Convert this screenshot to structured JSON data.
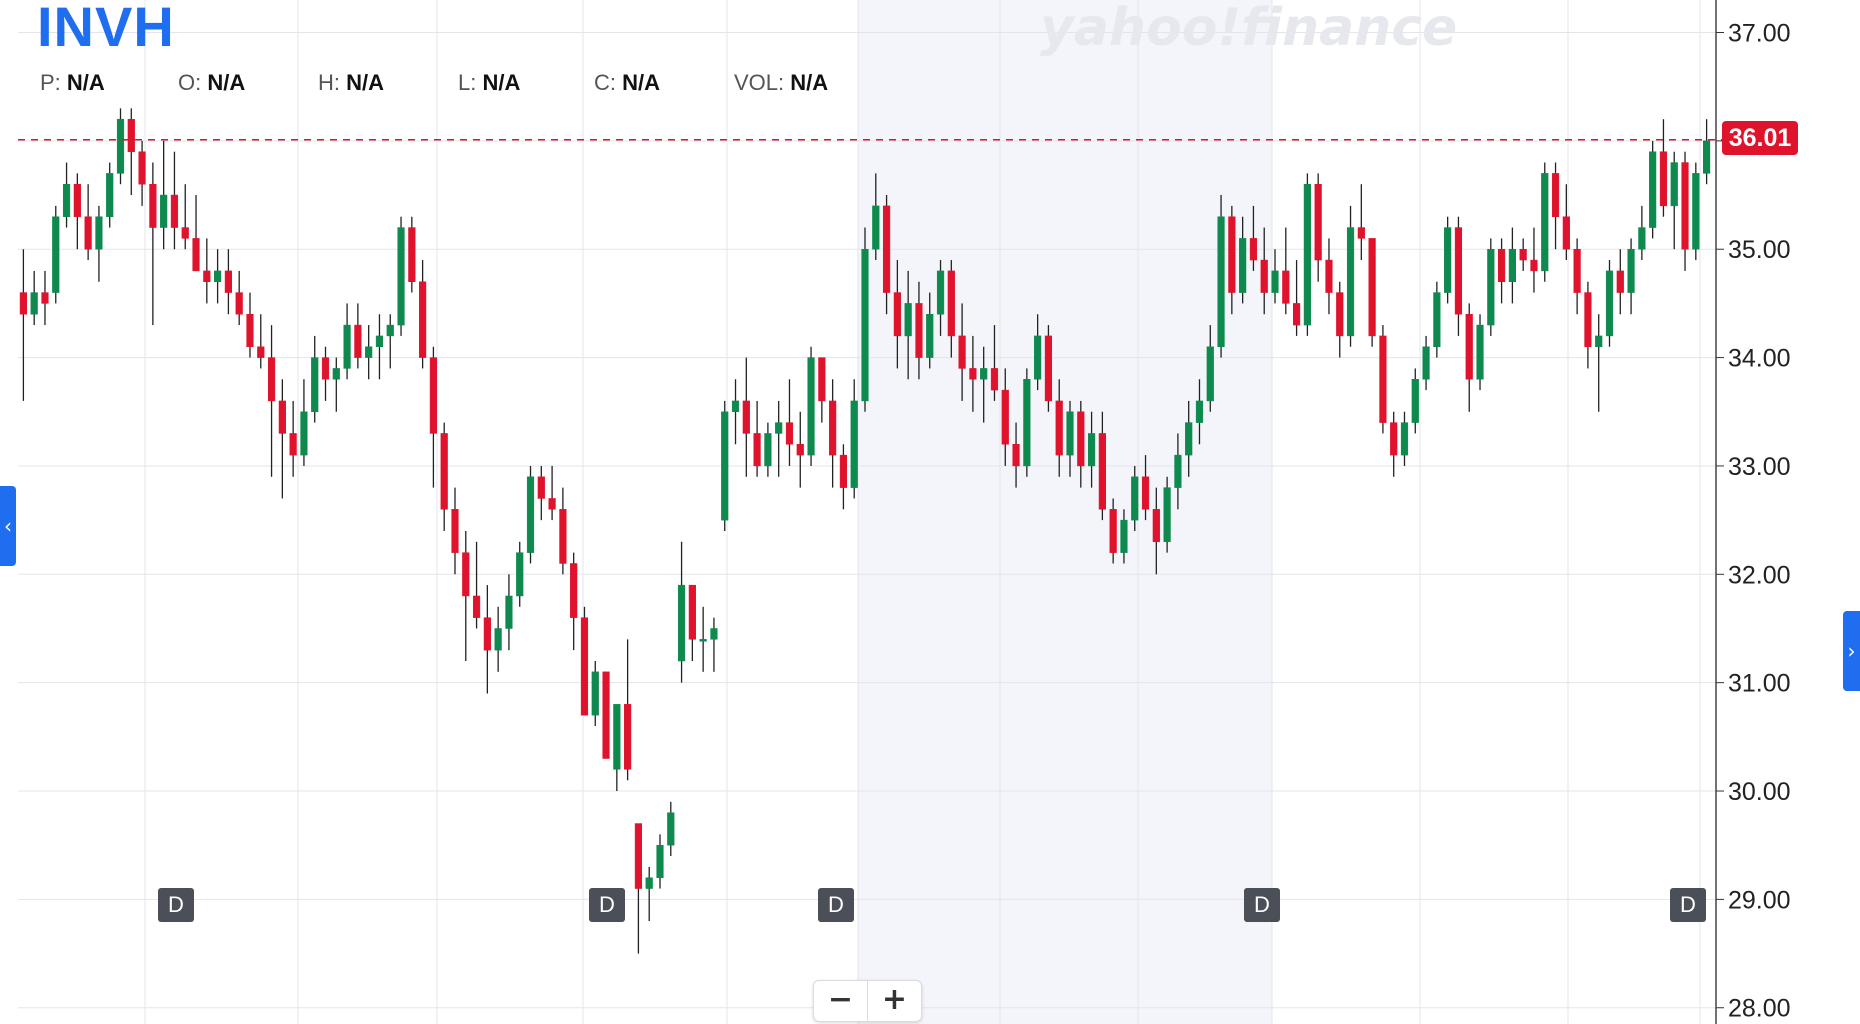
{
  "ticker": "INVH",
  "watermark": "yahoo!finance",
  "ohlc": {
    "p_label": "P:",
    "p_value": "N/A",
    "o_label": "O:",
    "o_value": "N/A",
    "h_label": "H:",
    "h_value": "N/A",
    "l_label": "L:",
    "l_value": "N/A",
    "c_label": "C:",
    "c_value": "N/A",
    "vol_label": "VOL:",
    "vol_value": "N/A"
  },
  "current_price_label": "36.01",
  "dividend_marker_label": "D",
  "zoom": {
    "out_label": "−",
    "in_label": "+"
  },
  "colors": {
    "up": "#0f8a4f",
    "down": "#e0132d",
    "grid": "#e3e5ea",
    "axis_text": "#222222",
    "shade": "#f3f5fa",
    "accent": "#1f6ef0"
  },
  "chart_data": {
    "type": "candlestick",
    "ylim": [
      27.85,
      37.3
    ],
    "yticks": [
      "28.00",
      "29.00",
      "30.00",
      "31.00",
      "32.00",
      "33.00",
      "34.00",
      "35.00",
      "36.00",
      "37.00"
    ],
    "current_price": 36.01,
    "ohlc_tuples": [
      [
        34.6,
        35.0,
        33.6,
        34.4
      ],
      [
        34.4,
        34.8,
        34.3,
        34.6
      ],
      [
        34.6,
        34.8,
        34.3,
        34.5
      ],
      [
        34.6,
        35.4,
        34.5,
        35.3
      ],
      [
        35.3,
        35.8,
        35.2,
        35.6
      ],
      [
        35.6,
        35.7,
        35.0,
        35.3
      ],
      [
        35.3,
        35.6,
        34.9,
        35.0
      ],
      [
        35.0,
        35.4,
        34.7,
        35.3
      ],
      [
        35.3,
        35.8,
        35.2,
        35.7
      ],
      [
        35.7,
        36.3,
        35.6,
        36.2
      ],
      [
        36.2,
        36.3,
        35.5,
        35.9
      ],
      [
        35.9,
        36.0,
        35.4,
        35.6
      ],
      [
        35.6,
        35.8,
        34.3,
        35.2
      ],
      [
        35.2,
        36.0,
        35.0,
        35.5
      ],
      [
        35.5,
        35.9,
        35.0,
        35.2
      ],
      [
        35.2,
        35.6,
        35.0,
        35.1
      ],
      [
        35.1,
        35.5,
        34.8,
        34.8
      ],
      [
        34.8,
        35.1,
        34.5,
        34.7
      ],
      [
        34.7,
        35.0,
        34.5,
        34.8
      ],
      [
        34.8,
        35.0,
        34.4,
        34.6
      ],
      [
        34.6,
        34.8,
        34.3,
        34.4
      ],
      [
        34.4,
        34.6,
        34.0,
        34.1
      ],
      [
        34.1,
        34.4,
        33.9,
        34.0
      ],
      [
        34.0,
        34.3,
        32.9,
        33.6
      ],
      [
        33.6,
        33.8,
        32.7,
        33.3
      ],
      [
        33.3,
        33.6,
        32.9,
        33.1
      ],
      [
        33.1,
        33.8,
        33.0,
        33.5
      ],
      [
        33.5,
        34.2,
        33.4,
        34.0
      ],
      [
        34.0,
        34.1,
        33.6,
        33.8
      ],
      [
        33.8,
        34.0,
        33.5,
        33.9
      ],
      [
        33.9,
        34.5,
        33.8,
        34.3
      ],
      [
        34.3,
        34.5,
        33.9,
        34.0
      ],
      [
        34.0,
        34.3,
        33.8,
        34.1
      ],
      [
        34.1,
        34.4,
        33.8,
        34.2
      ],
      [
        34.2,
        34.4,
        33.9,
        34.3
      ],
      [
        34.3,
        35.3,
        34.2,
        35.2
      ],
      [
        35.2,
        35.3,
        34.6,
        34.7
      ],
      [
        34.7,
        34.9,
        33.9,
        34.0
      ],
      [
        34.0,
        34.1,
        32.8,
        33.3
      ],
      [
        33.3,
        33.4,
        32.4,
        32.6
      ],
      [
        32.6,
        32.8,
        32.0,
        32.2
      ],
      [
        32.2,
        32.4,
        31.2,
        31.8
      ],
      [
        31.8,
        32.3,
        31.5,
        31.6
      ],
      [
        31.6,
        31.9,
        30.9,
        31.3
      ],
      [
        31.3,
        31.7,
        31.1,
        31.5
      ],
      [
        31.5,
        32.0,
        31.3,
        31.8
      ],
      [
        31.8,
        32.3,
        31.7,
        32.2
      ],
      [
        32.2,
        33.0,
        32.1,
        32.9
      ],
      [
        32.9,
        33.0,
        32.5,
        32.7
      ],
      [
        32.7,
        33.0,
        32.5,
        32.6
      ],
      [
        32.6,
        32.8,
        32.0,
        32.1
      ],
      [
        32.1,
        32.2,
        31.3,
        31.6
      ],
      [
        31.6,
        31.7,
        30.8,
        30.7
      ],
      [
        30.7,
        31.2,
        30.6,
        31.1
      ],
      [
        31.1,
        31.1,
        30.3,
        30.3
      ],
      [
        30.2,
        30.8,
        30.0,
        30.8
      ],
      [
        30.8,
        31.4,
        30.1,
        30.2
      ],
      [
        29.7,
        29.7,
        28.5,
        29.1
      ],
      [
        29.1,
        29.3,
        28.8,
        29.2
      ],
      [
        29.2,
        29.6,
        29.1,
        29.5
      ],
      [
        29.5,
        29.9,
        29.4,
        29.8
      ],
      [
        31.2,
        32.3,
        31.0,
        31.9
      ],
      [
        31.9,
        31.9,
        31.2,
        31.4
      ],
      [
        31.4,
        31.7,
        31.1,
        31.4
      ],
      [
        31.4,
        31.6,
        31.1,
        31.5
      ],
      [
        32.5,
        33.6,
        32.4,
        33.5
      ],
      [
        33.5,
        33.8,
        33.2,
        33.6
      ],
      [
        33.6,
        34.0,
        32.9,
        33.3
      ],
      [
        33.3,
        33.6,
        32.9,
        33.0
      ],
      [
        33.0,
        33.4,
        32.9,
        33.3
      ],
      [
        33.3,
        33.6,
        32.9,
        33.4
      ],
      [
        33.4,
        33.8,
        33.0,
        33.2
      ],
      [
        33.2,
        33.5,
        32.8,
        33.1
      ],
      [
        33.1,
        34.1,
        33.0,
        34.0
      ],
      [
        34.0,
        34.0,
        33.4,
        33.6
      ],
      [
        33.6,
        33.8,
        32.8,
        33.1
      ],
      [
        33.1,
        33.2,
        32.6,
        32.8
      ],
      [
        32.8,
        33.8,
        32.7,
        33.6
      ],
      [
        33.6,
        35.2,
        33.5,
        35.0
      ],
      [
        35.0,
        35.7,
        34.9,
        35.4
      ],
      [
        35.4,
        35.5,
        34.4,
        34.6
      ],
      [
        34.6,
        34.9,
        33.9,
        34.2
      ],
      [
        34.2,
        34.8,
        33.8,
        34.5
      ],
      [
        34.5,
        34.7,
        33.8,
        34.0
      ],
      [
        34.0,
        34.6,
        33.9,
        34.4
      ],
      [
        34.4,
        34.9,
        34.2,
        34.8
      ],
      [
        34.8,
        34.9,
        34.0,
        34.2
      ],
      [
        34.2,
        34.5,
        33.6,
        33.9
      ],
      [
        33.9,
        34.2,
        33.5,
        33.8
      ],
      [
        33.8,
        34.1,
        33.4,
        33.9
      ],
      [
        33.9,
        34.3,
        33.6,
        33.7
      ],
      [
        33.7,
        33.9,
        33.0,
        33.2
      ],
      [
        33.2,
        33.4,
        32.8,
        33.0
      ],
      [
        33.0,
        33.9,
        32.9,
        33.8
      ],
      [
        33.8,
        34.4,
        33.7,
        34.2
      ],
      [
        34.2,
        34.3,
        33.5,
        33.6
      ],
      [
        33.6,
        33.8,
        32.9,
        33.1
      ],
      [
        33.1,
        33.6,
        32.9,
        33.5
      ],
      [
        33.5,
        33.6,
        32.8,
        33.0
      ],
      [
        33.0,
        33.5,
        32.8,
        33.3
      ],
      [
        33.3,
        33.5,
        32.5,
        32.6
      ],
      [
        32.6,
        32.7,
        32.1,
        32.2
      ],
      [
        32.2,
        32.6,
        32.1,
        32.5
      ],
      [
        32.5,
        33.0,
        32.4,
        32.9
      ],
      [
        32.9,
        33.1,
        32.5,
        32.6
      ],
      [
        32.6,
        32.8,
        32.0,
        32.3
      ],
      [
        32.3,
        32.9,
        32.2,
        32.8
      ],
      [
        32.8,
        33.3,
        32.6,
        33.1
      ],
      [
        33.1,
        33.6,
        32.9,
        33.4
      ],
      [
        33.4,
        33.8,
        33.2,
        33.6
      ],
      [
        33.6,
        34.3,
        33.5,
        34.1
      ],
      [
        34.1,
        35.5,
        34.0,
        35.3
      ],
      [
        35.3,
        35.4,
        34.4,
        34.6
      ],
      [
        34.6,
        35.3,
        34.5,
        35.1
      ],
      [
        35.1,
        35.4,
        34.8,
        34.9
      ],
      [
        34.9,
        35.2,
        34.4,
        34.6
      ],
      [
        34.6,
        35.0,
        34.5,
        34.8
      ],
      [
        34.8,
        35.2,
        34.4,
        34.5
      ],
      [
        34.5,
        34.9,
        34.2,
        34.3
      ],
      [
        34.3,
        35.7,
        34.2,
        35.6
      ],
      [
        35.6,
        35.7,
        34.7,
        34.9
      ],
      [
        34.9,
        35.1,
        34.4,
        34.6
      ],
      [
        34.6,
        34.7,
        34.0,
        34.2
      ],
      [
        34.2,
        35.4,
        34.1,
        35.2
      ],
      [
        35.2,
        35.6,
        34.9,
        35.1
      ],
      [
        35.1,
        35.1,
        34.1,
        34.2
      ],
      [
        34.2,
        34.3,
        33.3,
        33.4
      ],
      [
        33.4,
        33.5,
        32.9,
        33.1
      ],
      [
        33.1,
        33.5,
        33.0,
        33.4
      ],
      [
        33.4,
        33.9,
        33.3,
        33.8
      ],
      [
        33.8,
        34.2,
        33.7,
        34.1
      ],
      [
        34.1,
        34.7,
        34.0,
        34.6
      ],
      [
        34.6,
        35.3,
        34.5,
        35.2
      ],
      [
        35.2,
        35.3,
        34.2,
        34.4
      ],
      [
        34.4,
        34.5,
        33.5,
        33.8
      ],
      [
        33.8,
        34.4,
        33.7,
        34.3
      ],
      [
        34.3,
        35.1,
        34.2,
        35.0
      ],
      [
        35.0,
        35.1,
        34.5,
        34.7
      ],
      [
        34.7,
        35.2,
        34.5,
        35.0
      ],
      [
        35.0,
        35.1,
        34.8,
        34.9
      ],
      [
        34.9,
        35.2,
        34.6,
        34.8
      ],
      [
        34.8,
        35.8,
        34.7,
        35.7
      ],
      [
        35.7,
        35.8,
        35.0,
        35.3
      ],
      [
        35.3,
        35.6,
        34.9,
        35.0
      ],
      [
        35.0,
        35.1,
        34.4,
        34.6
      ],
      [
        34.6,
        34.7,
        33.9,
        34.1
      ],
      [
        34.1,
        34.4,
        33.5,
        34.2
      ],
      [
        34.2,
        34.9,
        34.1,
        34.8
      ],
      [
        34.8,
        35.0,
        34.4,
        34.6
      ],
      [
        34.6,
        35.1,
        34.4,
        35.0
      ],
      [
        35.0,
        35.4,
        34.9,
        35.2
      ],
      [
        35.2,
        36.0,
        35.1,
        35.9
      ],
      [
        35.9,
        36.2,
        35.3,
        35.4
      ],
      [
        35.4,
        35.9,
        35.0,
        35.8
      ],
      [
        35.8,
        35.9,
        34.8,
        35.0
      ],
      [
        35.0,
        35.8,
        34.9,
        35.7
      ],
      [
        35.7,
        36.2,
        35.6,
        36.0
      ]
    ]
  }
}
